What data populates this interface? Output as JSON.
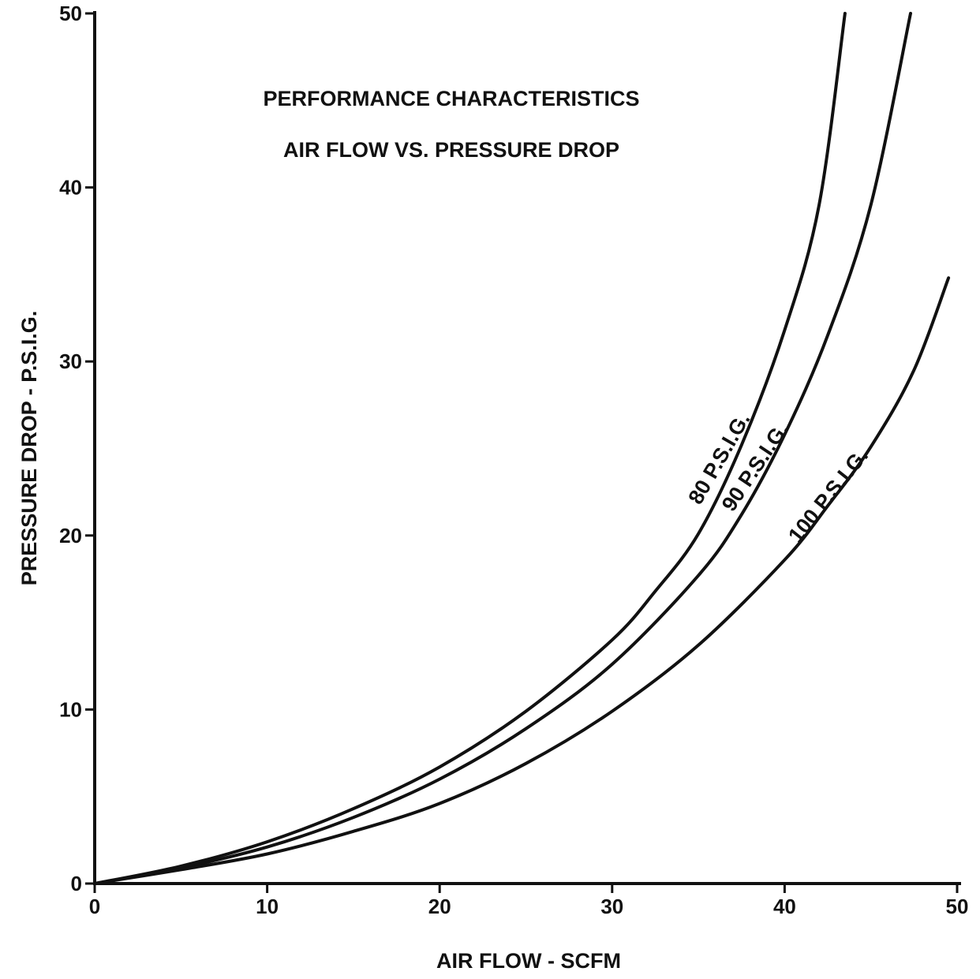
{
  "chart_data": {
    "type": "line",
    "title": "PERFORMANCE CHARACTERISTICS",
    "subtitle": "AIR FLOW VS. PRESSURE DROP",
    "xlabel": "AIR FLOW - SCFM",
    "ylabel": "PRESSURE DROP - P.S.I.G.",
    "xlim": [
      0,
      50
    ],
    "ylim": [
      0,
      50
    ],
    "xticks": [
      0,
      10,
      20,
      30,
      40,
      50
    ],
    "yticks": [
      0,
      10,
      20,
      30,
      40,
      50
    ],
    "grid": false,
    "series": [
      {
        "name": "80 P.S.I.G.",
        "x": [
          0,
          5,
          10,
          15,
          20,
          25,
          30,
          32.5,
          35,
          37.5,
          40,
          42,
          43.5
        ],
        "y": [
          0,
          1.0,
          2.4,
          4.3,
          6.7,
          9.9,
          14.0,
          16.8,
          20.1,
          25.2,
          31.8,
          39.0,
          50.0
        ]
      },
      {
        "name": "90 P.S.I.G.",
        "x": [
          0,
          5,
          10,
          15,
          20,
          25,
          30,
          35,
          37.5,
          40,
          42.5,
          45,
          47.3
        ],
        "y": [
          0,
          0.9,
          2.1,
          3.8,
          6.0,
          8.9,
          12.6,
          17.7,
          21.2,
          25.8,
          31.5,
          39.0,
          50.0
        ]
      },
      {
        "name": "100 P.S.I.G.",
        "x": [
          0,
          5,
          10,
          15,
          20,
          25,
          30,
          35,
          40,
          42.5,
          45,
          47.5,
          49.5
        ],
        "y": [
          0,
          0.8,
          1.7,
          3.0,
          4.6,
          6.9,
          9.9,
          13.7,
          18.6,
          21.7,
          25.1,
          29.5,
          34.8
        ]
      }
    ]
  }
}
